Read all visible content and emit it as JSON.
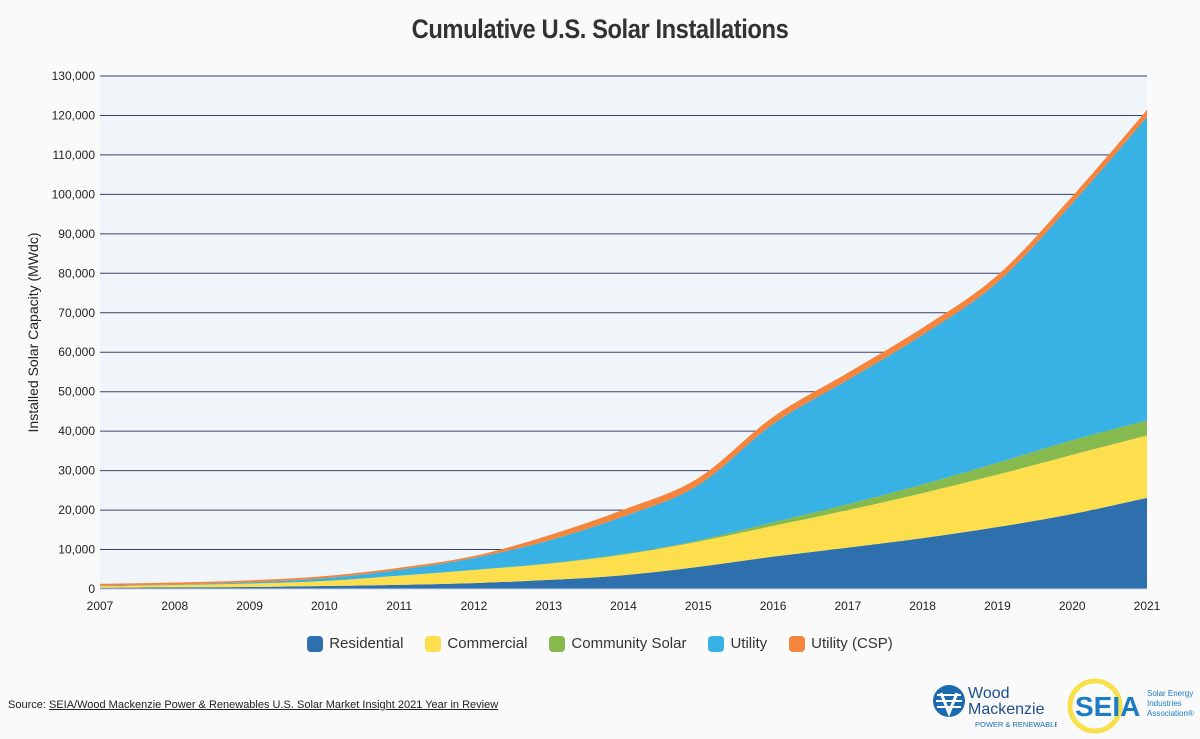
{
  "chart_data": {
    "type": "area",
    "stacked": true,
    "title": "Cumulative U.S. Solar Installations",
    "xlabel": "",
    "ylabel": "Installed Solar Capacity (MWdc)",
    "x": [
      2007,
      2008,
      2009,
      2010,
      2011,
      2012,
      2013,
      2014,
      2015,
      2016,
      2017,
      2018,
      2019,
      2020,
      2021
    ],
    "ylim": [
      0,
      130000
    ],
    "yticks": [
      0,
      10000,
      20000,
      30000,
      40000,
      50000,
      60000,
      70000,
      80000,
      90000,
      100000,
      110000,
      120000,
      130000
    ],
    "ytick_labels": [
      "0",
      "10,000",
      "20,000",
      "30,000",
      "40,000",
      "50,000",
      "60,000",
      "70,000",
      "80,000",
      "90,000",
      "100,000",
      "110,000",
      "120,000",
      "130,000"
    ],
    "grid": true,
    "legend_position": "bottom",
    "series": [
      {
        "name": "Residential",
        "color": "#2e6fad",
        "values": [
          300,
          400,
          500,
          750,
          1050,
          1500,
          2300,
          3500,
          5600,
          8200,
          10500,
          12900,
          15700,
          19000,
          23100
        ]
      },
      {
        "name": "Commercial",
        "color": "#fddf4d",
        "values": [
          400,
          600,
          900,
          1300,
          2300,
          3300,
          4100,
          5200,
          6400,
          7800,
          9500,
          11400,
          13300,
          15000,
          15800
        ]
      },
      {
        "name": "Community Solar",
        "color": "#86b94e",
        "values": [
          0,
          0,
          0,
          10,
          30,
          60,
          100,
          200,
          300,
          900,
          1500,
          2200,
          3000,
          3700,
          3800
        ]
      },
      {
        "name": "Utility",
        "color": "#38b1e4",
        "values": [
          100,
          150,
          300,
          700,
          1500,
          3000,
          5800,
          9500,
          14000,
          24900,
          31500,
          37900,
          45700,
          60000,
          76900
        ]
      },
      {
        "name": "Utility (CSP)",
        "color": "#f5853c",
        "values": [
          500,
          500,
          500,
          500,
          500,
          500,
          1300,
          1700,
          1800,
          1800,
          1800,
          1800,
          1800,
          1800,
          1800
        ]
      }
    ]
  },
  "source": {
    "label": "Source: ",
    "link": "SEIA/Wood Mackenzie Power & Renewables U.S. Solar Market Insight 2021 Year in Review"
  },
  "logos": {
    "woodmac": "Wood Mackenzie POWER & RENEWABLES",
    "seia": "SEIA Solar Energy Industries Association®"
  },
  "colors": {
    "plot_background": "#f0f5fa",
    "gridline": "#3c3f6b"
  }
}
